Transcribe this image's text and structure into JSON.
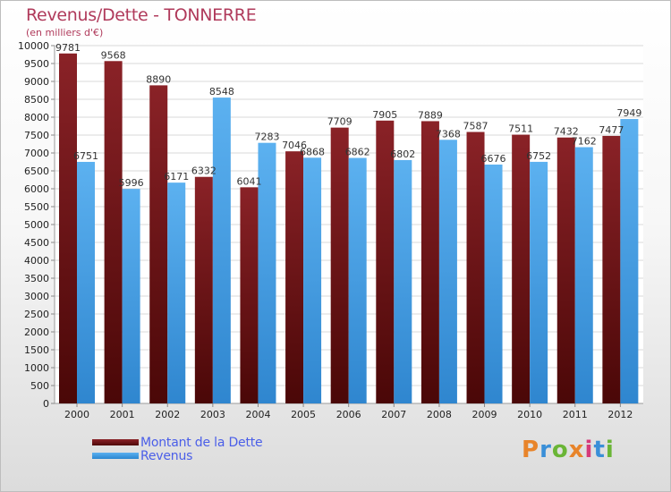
{
  "header": {
    "title": "Revenus/Dette - TONNERRE",
    "subtitle": "(en milliers d'€)"
  },
  "logo": {
    "text": "Proxiti"
  },
  "colors": {
    "debt": "#6b0f12",
    "revenue": "#3d99e0",
    "title": "#b03a5b",
    "legend_text": "#4a5ee8"
  },
  "chart_data": {
    "type": "bar",
    "title": "Revenus/Dette - TONNERRE",
    "subtitle": "(en milliers d'€)",
    "categories": [
      "2000",
      "2001",
      "2002",
      "2003",
      "2004",
      "2005",
      "2006",
      "2007",
      "2008",
      "2009",
      "2010",
      "2011",
      "2012"
    ],
    "series": [
      {
        "name": "Montant de la Dette",
        "values": [
          9781,
          9568,
          8890,
          6332,
          6041,
          7046,
          7709,
          7905,
          7889,
          7587,
          7511,
          7432,
          7477
        ]
      },
      {
        "name": "Revenus",
        "values": [
          6751,
          5996,
          6171,
          8548,
          7283,
          6868,
          6862,
          6802,
          7368,
          6676,
          6752,
          7162,
          7949
        ]
      }
    ],
    "ylim": [
      0,
      10000
    ],
    "yticks": [
      0,
      500,
      1000,
      1500,
      2000,
      2500,
      3000,
      3500,
      4000,
      4500,
      5000,
      5500,
      6000,
      6500,
      7000,
      7500,
      8000,
      8500,
      9000,
      9500,
      10000
    ],
    "grid": true,
    "legend": "bottom-left"
  }
}
